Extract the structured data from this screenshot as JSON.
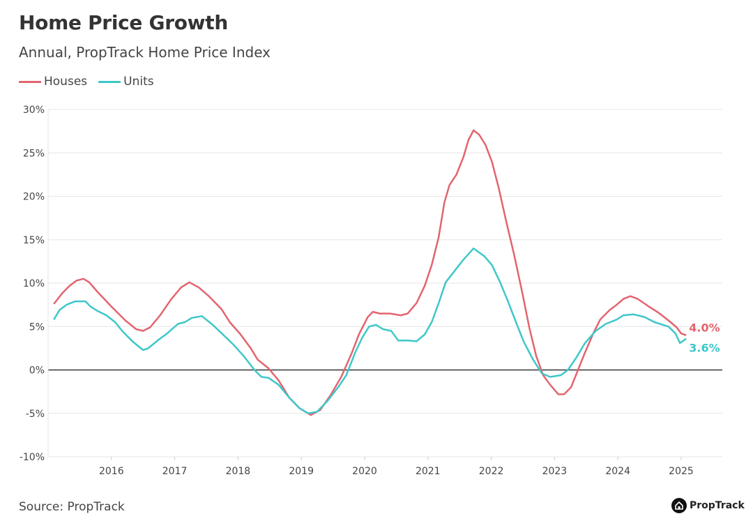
{
  "chart_data": {
    "type": "line",
    "title": "Home Price Growth",
    "subtitle": "Annual, PropTrack Home Price Index",
    "xlabel": "",
    "ylabel": "",
    "xlim": [
      2015,
      2025.65
    ],
    "ylim": [
      -10,
      30
    ],
    "y_ticks": [
      "30%",
      "25%",
      "20%",
      "15%",
      "10%",
      "5%",
      "0%",
      "-5%",
      "-10%"
    ],
    "y_tick_values": [
      30,
      25,
      20,
      15,
      10,
      5,
      0,
      -5,
      -10
    ],
    "x_ticks": [
      "2016",
      "2017",
      "2018",
      "2019",
      "2020",
      "2021",
      "2022",
      "2023",
      "2024",
      "2025"
    ],
    "x_tick_values": [
      2016,
      2017,
      2018,
      2019,
      2020,
      2021,
      2022,
      2023,
      2024,
      2025
    ],
    "grid": true,
    "legend_placement": "top-left",
    "series": [
      {
        "name": "Houses",
        "color": "#e3646f",
        "end_label": "4.0%",
        "x": [
          2015.09,
          2015.23,
          2015.34,
          2015.45,
          2015.56,
          2015.65,
          2015.78,
          2016.0,
          2016.22,
          2016.39,
          2016.5,
          2016.61,
          2016.77,
          2016.94,
          2017.1,
          2017.23,
          2017.38,
          2017.54,
          2017.74,
          2017.87,
          2018.04,
          2018.2,
          2018.31,
          2018.48,
          2018.64,
          2018.81,
          2018.97,
          2019.15,
          2019.3,
          2019.47,
          2019.63,
          2019.8,
          2019.91,
          2020.05,
          2020.13,
          2020.24,
          2020.4,
          2020.57,
          2020.68,
          2020.82,
          2020.95,
          2021.06,
          2021.17,
          2021.26,
          2021.34,
          2021.45,
          2021.56,
          2021.64,
          2021.72,
          2021.81,
          2021.91,
          2022.01,
          2022.12,
          2022.23,
          2022.36,
          2022.49,
          2022.6,
          2022.71,
          2022.82,
          2022.93,
          2023.06,
          2023.15,
          2023.26,
          2023.37,
          2023.48,
          2023.61,
          2023.72,
          2023.87,
          2023.98,
          2024.09,
          2024.2,
          2024.31,
          2024.47,
          2024.64,
          2024.8,
          2024.93,
          2025.0,
          2025.08
        ],
        "values": [
          7.6,
          8.9,
          9.7,
          10.3,
          10.5,
          10.1,
          9.0,
          7.3,
          5.7,
          4.7,
          4.5,
          4.9,
          6.3,
          8.1,
          9.5,
          10.1,
          9.5,
          8.5,
          7.0,
          5.5,
          4.1,
          2.5,
          1.2,
          0.2,
          -1.2,
          -3.2,
          -4.4,
          -5.2,
          -4.6,
          -2.8,
          -0.8,
          2.0,
          4.1,
          6.1,
          6.7,
          6.5,
          6.5,
          6.3,
          6.5,
          7.7,
          9.7,
          12.1,
          15.3,
          19.3,
          21.3,
          22.5,
          24.5,
          26.5,
          27.6,
          27.1,
          25.9,
          24.0,
          20.9,
          17.3,
          13.3,
          8.9,
          4.9,
          1.6,
          -0.6,
          -1.7,
          -2.8,
          -2.8,
          -2.0,
          0.0,
          2.0,
          4.2,
          5.8,
          6.9,
          7.5,
          8.2,
          8.5,
          8.2,
          7.4,
          6.6,
          5.7,
          4.9,
          4.2,
          4.0
        ]
      },
      {
        "name": "Units",
        "color": "#3ec7c9",
        "end_label": "3.6%",
        "x": [
          2015.09,
          2015.18,
          2015.29,
          2015.43,
          2015.59,
          2015.67,
          2015.78,
          2015.92,
          2016.06,
          2016.17,
          2016.33,
          2016.5,
          2016.58,
          2016.75,
          2016.88,
          2017.05,
          2017.16,
          2017.27,
          2017.43,
          2017.6,
          2017.76,
          2017.93,
          2018.09,
          2018.26,
          2018.37,
          2018.48,
          2018.64,
          2018.81,
          2018.97,
          2019.11,
          2019.25,
          2019.41,
          2019.58,
          2019.71,
          2019.85,
          2019.96,
          2020.07,
          2020.18,
          2020.29,
          2020.42,
          2020.53,
          2020.68,
          2020.82,
          2020.95,
          2021.06,
          2021.17,
          2021.28,
          2021.41,
          2021.56,
          2021.72,
          2021.89,
          2022.01,
          2022.14,
          2022.27,
          2022.38,
          2022.51,
          2022.66,
          2022.8,
          2022.93,
          2023.1,
          2023.21,
          2023.35,
          2023.48,
          2023.65,
          2023.81,
          2023.98,
          2024.09,
          2024.25,
          2024.42,
          2024.58,
          2024.8,
          2024.91,
          2024.98,
          2025.08
        ],
        "values": [
          5.8,
          6.9,
          7.5,
          7.9,
          7.9,
          7.3,
          6.8,
          6.3,
          5.5,
          4.5,
          3.3,
          2.3,
          2.5,
          3.5,
          4.2,
          5.3,
          5.5,
          6.0,
          6.2,
          5.2,
          4.1,
          2.9,
          1.6,
          0.0,
          -0.8,
          -0.9,
          -1.7,
          -3.2,
          -4.4,
          -5.0,
          -4.8,
          -3.6,
          -2.0,
          -0.6,
          2.0,
          3.7,
          5.0,
          5.2,
          4.7,
          4.5,
          3.4,
          3.4,
          3.3,
          4.1,
          5.5,
          7.7,
          10.1,
          11.3,
          12.7,
          14.0,
          13.1,
          12.1,
          10.1,
          7.8,
          5.7,
          3.3,
          1.2,
          -0.4,
          -0.8,
          -0.6,
          0.0,
          1.5,
          3.1,
          4.5,
          5.3,
          5.8,
          6.3,
          6.4,
          6.1,
          5.5,
          5.0,
          4.2,
          3.1,
          3.6
        ]
      }
    ]
  },
  "footer": {
    "source": "Source: PropTrack",
    "logo_text": "PropTrack"
  }
}
